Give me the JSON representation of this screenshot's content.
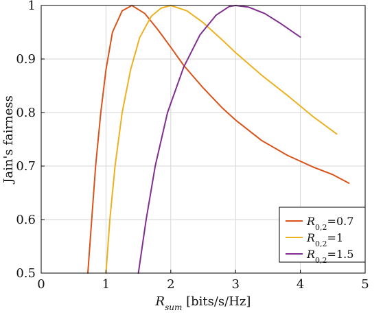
{
  "chart_data": {
    "type": "line",
    "title": "",
    "xlabel": "R_sum [bits/s/Hz]",
    "ylabel": "Jain's fairness",
    "xlim": [
      0,
      5
    ],
    "ylim": [
      0.5,
      1
    ],
    "x_ticks": [
      0,
      1,
      2,
      3,
      4,
      5
    ],
    "y_ticks": [
      0.5,
      0.6,
      0.7,
      0.8,
      0.9,
      1
    ],
    "x_tick_labels": [
      "0",
      "1",
      "2",
      "3",
      "4",
      "5"
    ],
    "y_tick_labels": [
      "0.5",
      "0.6",
      "0.7",
      "0.8",
      "0.9",
      "1"
    ],
    "grid": true,
    "legend_position": "bottom-right",
    "series": [
      {
        "name": "R_{0,2}=0.7",
        "legend_parts": {
          "base": "R",
          "sub": "0,2",
          "suffix": "=0.7"
        },
        "color": "#D95319",
        "points": [
          [
            0.72,
            0.5
          ],
          [
            0.78,
            0.6
          ],
          [
            0.84,
            0.7
          ],
          [
            0.92,
            0.8
          ],
          [
            1.0,
            0.88
          ],
          [
            1.1,
            0.95
          ],
          [
            1.25,
            0.99
          ],
          [
            1.4,
            1.0
          ],
          [
            1.6,
            0.985
          ],
          [
            1.8,
            0.955
          ],
          [
            2.0,
            0.922
          ],
          [
            2.2,
            0.888
          ],
          [
            2.5,
            0.846
          ],
          [
            2.8,
            0.808
          ],
          [
            3.0,
            0.786
          ],
          [
            3.4,
            0.748
          ],
          [
            3.8,
            0.72
          ],
          [
            4.2,
            0.698
          ],
          [
            4.5,
            0.684
          ],
          [
            4.75,
            0.668
          ]
        ]
      },
      {
        "name": "R_{0,2}=1",
        "legend_parts": {
          "base": "R",
          "sub": "0,2",
          "suffix": "=1"
        },
        "color": "#EDB120",
        "points": [
          [
            1.0,
            0.5
          ],
          [
            1.06,
            0.6
          ],
          [
            1.14,
            0.7
          ],
          [
            1.25,
            0.8
          ],
          [
            1.38,
            0.88
          ],
          [
            1.52,
            0.94
          ],
          [
            1.7,
            0.98
          ],
          [
            1.85,
            0.995
          ],
          [
            2.0,
            1.0
          ],
          [
            2.25,
            0.99
          ],
          [
            2.5,
            0.968
          ],
          [
            2.8,
            0.935
          ],
          [
            3.0,
            0.912
          ],
          [
            3.4,
            0.87
          ],
          [
            3.8,
            0.832
          ],
          [
            4.2,
            0.792
          ],
          [
            4.56,
            0.76
          ]
        ]
      },
      {
        "name": "R_{0,2}=1.5",
        "legend_parts": {
          "base": "R",
          "sub": "0,2",
          "suffix": "=1.5"
        },
        "color": "#7E2F8E",
        "points": [
          [
            1.5,
            0.5
          ],
          [
            1.62,
            0.6
          ],
          [
            1.76,
            0.7
          ],
          [
            1.95,
            0.8
          ],
          [
            2.2,
            0.885
          ],
          [
            2.45,
            0.945
          ],
          [
            2.7,
            0.982
          ],
          [
            2.9,
            0.998
          ],
          [
            3.0,
            1.0
          ],
          [
            3.2,
            0.997
          ],
          [
            3.45,
            0.985
          ],
          [
            3.7,
            0.966
          ],
          [
            4.0,
            0.941
          ]
        ]
      }
    ]
  }
}
